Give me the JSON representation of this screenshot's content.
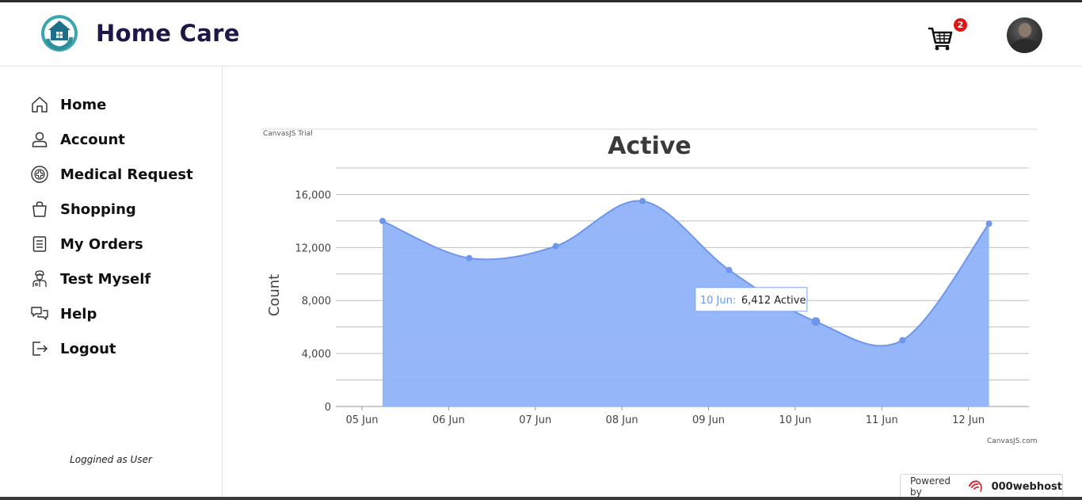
{
  "app": {
    "title": "Home Care",
    "logo": "home-care-logo"
  },
  "header": {
    "cart_icon": "cart-icon",
    "cart_count": "2",
    "avatar": "user-avatar"
  },
  "sidebar": {
    "items": [
      {
        "label": "Home",
        "icon": "home-icon"
      },
      {
        "label": "Account",
        "icon": "user-icon"
      },
      {
        "label": "Medical Request",
        "icon": "medical-plus-icon"
      },
      {
        "label": "Shopping",
        "icon": "shopping-bag-icon"
      },
      {
        "label": "My Orders",
        "icon": "orders-document-icon"
      },
      {
        "label": "Test Myself",
        "icon": "doctor-icon"
      },
      {
        "label": "Help",
        "icon": "chat-bubbles-icon"
      },
      {
        "label": "Logout",
        "icon": "logout-icon"
      }
    ],
    "status": "Loggined as User"
  },
  "chart": {
    "trial_text": "CanvasJS Trial",
    "credit_text": "CanvasJS.com"
  },
  "chart_data": {
    "type": "area",
    "title": "Active",
    "xlabel": "",
    "ylabel": "Count",
    "categories": [
      "05 Jun",
      "06 Jun",
      "07 Jun",
      "08 Jun",
      "09 Jun",
      "10 Jun",
      "11 Jun",
      "12 Jun"
    ],
    "points": [
      {
        "x": "05 Jun",
        "y": 14000
      },
      {
        "x": "06 Jun",
        "y": 11200
      },
      {
        "x": "07 Jun",
        "y": 12100
      },
      {
        "x": "08 Jun",
        "y": 15500
      },
      {
        "x": "09 Jun",
        "y": 10300
      },
      {
        "x": "10 Jun",
        "y": 6412
      },
      {
        "x": "11 Jun",
        "y": 5000
      },
      {
        "x": "12 Jun",
        "y": 13800
      }
    ],
    "yticks": [
      "0",
      "4,000",
      "8,000",
      "12,000",
      "16,000"
    ],
    "ylim": [
      0,
      18000
    ],
    "grid": true,
    "fill_color": "#8fb2f8",
    "line_color": "#6d97ec",
    "tooltip": {
      "date": "10 Jun:",
      "value": "6,412 Active"
    }
  },
  "footer": {
    "powered_label": "Powered by",
    "host_name": "000webhost"
  }
}
